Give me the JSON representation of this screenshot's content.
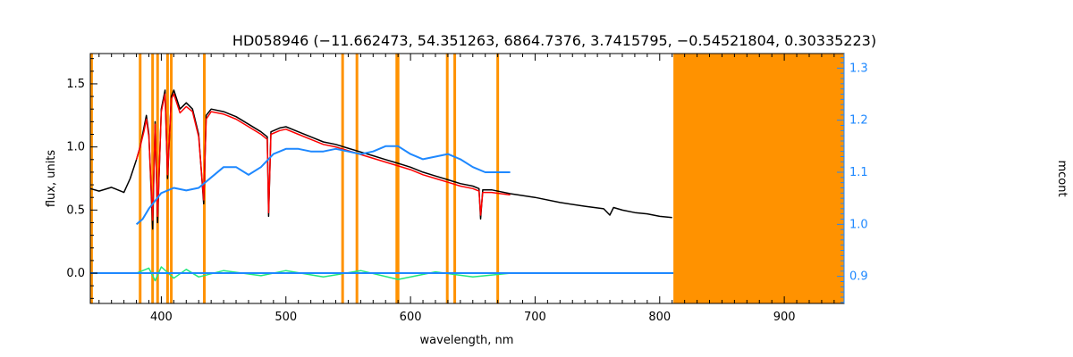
{
  "colors": {
    "observed": "#000000",
    "model": "#ff0000",
    "continuum": "#1e88ff",
    "residual": "#1ee87a",
    "mask": "#ff9200",
    "axis": "#000000",
    "right_axis": "#1e88ff"
  },
  "chart_data": {
    "type": "line",
    "title": "HD058946   (−11.662473, 54.351263, 6864.7376, 3.7415795, −0.54521804, 0.30335223)",
    "xlabel": "wavelength, nm",
    "ylabel": "flux, units",
    "ylabel_right": "mcont",
    "xlim": [
      343,
      948
    ],
    "ylim": [
      -0.24,
      1.74
    ],
    "ylim_right": [
      0.848,
      1.328
    ],
    "x_ticks": [
      400,
      500,
      600,
      700,
      800,
      900
    ],
    "y_ticks": [
      0.0,
      0.5,
      1.0,
      1.5
    ],
    "y_tick_labels": [
      "0.0",
      "0.5",
      "1.0",
      "1.5"
    ],
    "y_ticks_right": [
      0.9,
      1.0,
      1.1,
      1.2,
      1.3
    ],
    "y_tick_labels_right": [
      "0.9",
      "1.0",
      "1.1",
      "1.2",
      "1.3"
    ],
    "mask_lines": [
      344,
      383,
      393,
      397,
      405,
      408,
      434.5,
      545.5,
      557,
      589,
      590,
      629.5,
      635.5,
      670
    ],
    "mask_region": [
      811,
      948
    ],
    "series": [
      {
        "key": "observed",
        "x": [
          343,
          350,
          360,
          370,
          375,
          380,
          383,
          386,
          388,
          390,
          393,
          395,
          397,
          400,
          403,
          405,
          408,
          410,
          415,
          420,
          425,
          430,
          434,
          436,
          440,
          450,
          460,
          470,
          480,
          485,
          486.1,
          488,
          495,
          500,
          510,
          520,
          530,
          540,
          550,
          560,
          570,
          580,
          590,
          600,
          610,
          620,
          630,
          640,
          650,
          655,
          656.3,
          658,
          665,
          680,
          700,
          720,
          740,
          755,
          760,
          763,
          770,
          780,
          790,
          800,
          810
        ],
        "y": [
          0.67,
          0.65,
          0.68,
          0.64,
          0.75,
          0.9,
          1.0,
          1.15,
          1.25,
          1.1,
          0.35,
          1.2,
          0.4,
          1.3,
          1.45,
          0.75,
          1.4,
          1.45,
          1.3,
          1.35,
          1.3,
          1.1,
          0.55,
          1.25,
          1.3,
          1.28,
          1.24,
          1.18,
          1.12,
          1.08,
          0.45,
          1.12,
          1.15,
          1.16,
          1.12,
          1.08,
          1.04,
          1.02,
          0.99,
          0.96,
          0.93,
          0.9,
          0.87,
          0.84,
          0.8,
          0.77,
          0.74,
          0.71,
          0.69,
          0.67,
          0.43,
          0.66,
          0.66,
          0.63,
          0.6,
          0.56,
          0.53,
          0.51,
          0.46,
          0.52,
          0.5,
          0.48,
          0.47,
          0.45,
          0.44
        ]
      },
      {
        "key": "model",
        "x": [
          380,
          383,
          386,
          388,
          390,
          393,
          395,
          397,
          400,
          403,
          405,
          408,
          410,
          415,
          420,
          425,
          430,
          434,
          436,
          440,
          450,
          460,
          470,
          480,
          485,
          486.1,
          488,
          495,
          500,
          510,
          520,
          530,
          540,
          550,
          560,
          570,
          580,
          590,
          600,
          610,
          620,
          630,
          640,
          650,
          655,
          656.3,
          658,
          665,
          680
        ],
        "y": [
          0.9,
          1.0,
          1.12,
          1.22,
          1.08,
          0.42,
          1.18,
          0.45,
          1.28,
          1.42,
          0.78,
          1.38,
          1.42,
          1.27,
          1.32,
          1.28,
          1.08,
          0.58,
          1.22,
          1.28,
          1.26,
          1.22,
          1.16,
          1.1,
          1.06,
          0.48,
          1.1,
          1.13,
          1.14,
          1.1,
          1.06,
          1.02,
          1.0,
          0.97,
          0.94,
          0.91,
          0.88,
          0.85,
          0.82,
          0.78,
          0.75,
          0.72,
          0.69,
          0.67,
          0.65,
          0.46,
          0.64,
          0.64,
          0.62
        ]
      },
      {
        "key": "continuum",
        "axis": "right",
        "x": [
          380,
          385,
          390,
          400,
          410,
          420,
          430,
          440,
          450,
          460,
          470,
          480,
          490,
          500,
          510,
          520,
          530,
          540,
          550,
          560,
          570,
          580,
          590,
          600,
          610,
          620,
          630,
          640,
          650,
          660,
          670,
          680
        ],
        "y": [
          1.0,
          1.01,
          1.03,
          1.06,
          1.07,
          1.065,
          1.07,
          1.09,
          1.11,
          1.11,
          1.095,
          1.11,
          1.135,
          1.145,
          1.145,
          1.14,
          1.14,
          1.145,
          1.14,
          1.135,
          1.14,
          1.15,
          1.15,
          1.135,
          1.125,
          1.13,
          1.135,
          1.125,
          1.11,
          1.1,
          1.1,
          1.1
        ]
      },
      {
        "key": "residual",
        "x": [
          380,
          390,
          395,
          400,
          410,
          420,
          430,
          450,
          480,
          500,
          530,
          560,
          590,
          620,
          650,
          680
        ],
        "y": [
          0.0,
          0.04,
          -0.06,
          0.05,
          -0.04,
          0.03,
          -0.03,
          0.02,
          -0.02,
          0.02,
          -0.03,
          0.02,
          -0.05,
          0.01,
          -0.03,
          0.0
        ]
      }
    ]
  }
}
